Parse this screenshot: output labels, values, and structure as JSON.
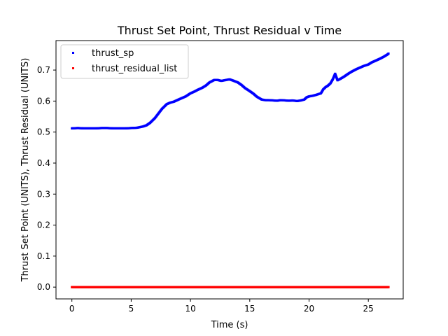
{
  "chart_data": {
    "type": "scatter",
    "title": "Thrust Set Point, Thrust Residual v Time",
    "xlabel": "Time (s)",
    "ylabel": "Thrust Set Point (UNITS), Thrust Residual (UNITS)",
    "xlim": [
      -1.34,
      27.94
    ],
    "ylim": [
      -0.038,
      0.795
    ],
    "xticks": [
      0,
      5,
      10,
      15,
      20,
      25
    ],
    "xtick_labels": [
      "0",
      "5",
      "10",
      "15",
      "20",
      "25"
    ],
    "yticks": [
      0.0,
      0.1,
      0.2,
      0.3,
      0.4,
      0.5,
      0.6,
      0.7
    ],
    "ytick_labels": [
      "0.0",
      "0.1",
      "0.2",
      "0.3",
      "0.4",
      "0.5",
      "0.6",
      "0.7"
    ],
    "grid": false,
    "legend_position": "top-left",
    "series": [
      {
        "name": "thrust_sp",
        "color": "#0000ff",
        "x": [
          0.0,
          0.5,
          1.0,
          1.5,
          2.0,
          2.5,
          3.0,
          3.5,
          4.0,
          4.5,
          5.0,
          5.5,
          6.0,
          6.3,
          6.6,
          7.0,
          7.3,
          7.6,
          8.0,
          8.3,
          8.6,
          9.0,
          9.3,
          9.6,
          10.0,
          10.3,
          10.6,
          11.0,
          11.3,
          11.6,
          12.0,
          12.3,
          12.6,
          13.0,
          13.3,
          13.6,
          14.0,
          14.3,
          14.6,
          15.0,
          15.3,
          15.6,
          16.0,
          16.3,
          16.6,
          17.0,
          17.3,
          17.6,
          18.0,
          18.3,
          18.6,
          19.0,
          19.3,
          19.6,
          19.8,
          20.0,
          20.3,
          20.6,
          21.0,
          21.2,
          21.4,
          21.6,
          21.8,
          22.0,
          22.2,
          22.4,
          22.7,
          23.0,
          23.3,
          23.6,
          24.0,
          24.3,
          24.6,
          25.0,
          25.3,
          25.6,
          26.0,
          26.3,
          26.6,
          26.7
        ],
        "y": [
          0.512,
          0.513,
          0.512,
          0.512,
          0.512,
          0.513,
          0.513,
          0.512,
          0.512,
          0.512,
          0.513,
          0.514,
          0.518,
          0.522,
          0.53,
          0.545,
          0.56,
          0.575,
          0.59,
          0.595,
          0.598,
          0.605,
          0.61,
          0.615,
          0.625,
          0.63,
          0.636,
          0.643,
          0.65,
          0.66,
          0.668,
          0.668,
          0.665,
          0.668,
          0.67,
          0.666,
          0.66,
          0.652,
          0.642,
          0.632,
          0.624,
          0.614,
          0.605,
          0.603,
          0.603,
          0.602,
          0.601,
          0.603,
          0.602,
          0.601,
          0.602,
          0.6,
          0.602,
          0.605,
          0.612,
          0.615,
          0.617,
          0.62,
          0.625,
          0.638,
          0.645,
          0.65,
          0.657,
          0.67,
          0.688,
          0.667,
          0.673,
          0.68,
          0.688,
          0.695,
          0.703,
          0.708,
          0.713,
          0.718,
          0.725,
          0.73,
          0.737,
          0.743,
          0.75,
          0.753
        ]
      },
      {
        "name": "thrust_residual_list",
        "color": "#ff0000",
        "x": [
          0.0,
          0.5,
          1.0,
          1.5,
          2.0,
          2.5,
          3.0,
          3.5,
          4.0,
          4.5,
          5.0,
          5.5,
          6.0,
          6.5,
          7.0,
          7.5,
          8.0,
          8.5,
          9.0,
          9.5,
          10.0,
          10.5,
          11.0,
          11.5,
          12.0,
          12.5,
          13.0,
          13.5,
          14.0,
          14.5,
          15.0,
          15.5,
          16.0,
          16.5,
          17.0,
          17.5,
          18.0,
          18.5,
          19.0,
          19.5,
          20.0,
          20.5,
          21.0,
          21.5,
          22.0,
          22.5,
          23.0,
          23.5,
          24.0,
          24.5,
          25.0,
          25.5,
          26.0,
          26.5,
          26.7
        ],
        "y": [
          0.0,
          0.0,
          0.0,
          0.0,
          0.0,
          0.0,
          0.0,
          0.0,
          0.0,
          0.0,
          0.0,
          0.0,
          0.0,
          0.0,
          0.0,
          0.0,
          0.0,
          0.0,
          0.0,
          0.0,
          0.0,
          0.0,
          0.0,
          0.0,
          0.0,
          0.0,
          0.0,
          0.0,
          0.0,
          0.0,
          0.0,
          0.0,
          0.0,
          0.0,
          0.0,
          0.0,
          0.0,
          0.0,
          0.0,
          0.0,
          0.0,
          0.0,
          0.0,
          0.0,
          0.0,
          0.0,
          0.0,
          0.0,
          0.0,
          0.0,
          0.0,
          0.0,
          0.0,
          0.0,
          0.0
        ]
      }
    ]
  }
}
